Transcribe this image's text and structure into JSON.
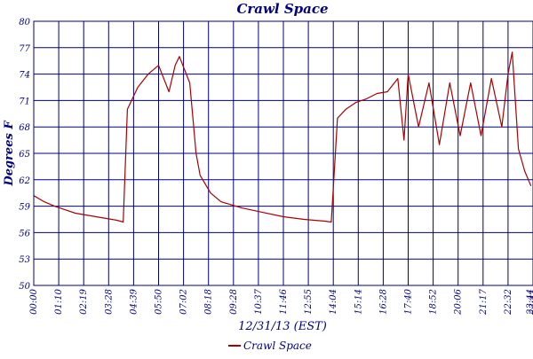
{
  "chart_data": {
    "type": "line",
    "title": "Crawl Space",
    "xlabel": "12/31/13 (EST)",
    "ylabel": "Degrees F",
    "ylim": [
      50,
      80
    ],
    "yticks": [
      50,
      53,
      56,
      59,
      62,
      65,
      68,
      71,
      74,
      77,
      80
    ],
    "xticks": [
      "00:00",
      "01:10",
      "02:19",
      "03:28",
      "04:39",
      "05:50",
      "07:02",
      "08:18",
      "09:28",
      "10:37",
      "11:46",
      "12:55",
      "14:04",
      "15:14",
      "16:28",
      "17:40",
      "18:52",
      "20:06",
      "21:17",
      "22:32",
      "23:41",
      "23:44"
    ],
    "grid": true,
    "legend": "bottom-center",
    "colors": {
      "series": "#aa0000",
      "grid": "#000080",
      "text": "#000080"
    },
    "series": [
      {
        "name": "Crawl Space",
        "x": [
          0,
          0.5,
          1,
          1.5,
          2,
          2.5,
          3,
          3.5,
          4,
          4.3,
          4.5,
          5,
          5.5,
          6,
          6.5,
          6.8,
          7,
          7.5,
          7.8,
          8,
          8.5,
          9,
          10,
          11,
          12,
          13,
          14,
          14.3,
          14.6,
          15,
          15.5,
          16,
          16.5,
          17,
          17.5,
          17.8,
          18,
          18.5,
          19,
          19.5,
          20,
          20.5,
          21,
          21.5,
          22,
          22.5,
          22.8,
          23,
          23.3,
          23.6,
          23.9
        ],
        "values": [
          60.2,
          59.5,
          59,
          58.6,
          58.2,
          58,
          57.8,
          57.6,
          57.4,
          57.2,
          70,
          72.5,
          74,
          75,
          72,
          75,
          76,
          73,
          65,
          62.5,
          60.5,
          59.5,
          58.8,
          58.3,
          57.8,
          57.5,
          57.3,
          57.2,
          69,
          70,
          70.8,
          71.2,
          71.8,
          72,
          73.5,
          66.5,
          74,
          68,
          73,
          66,
          73,
          67,
          73,
          67,
          73.5,
          68,
          74,
          76.5,
          65.5,
          63,
          61.3
        ]
      }
    ]
  }
}
